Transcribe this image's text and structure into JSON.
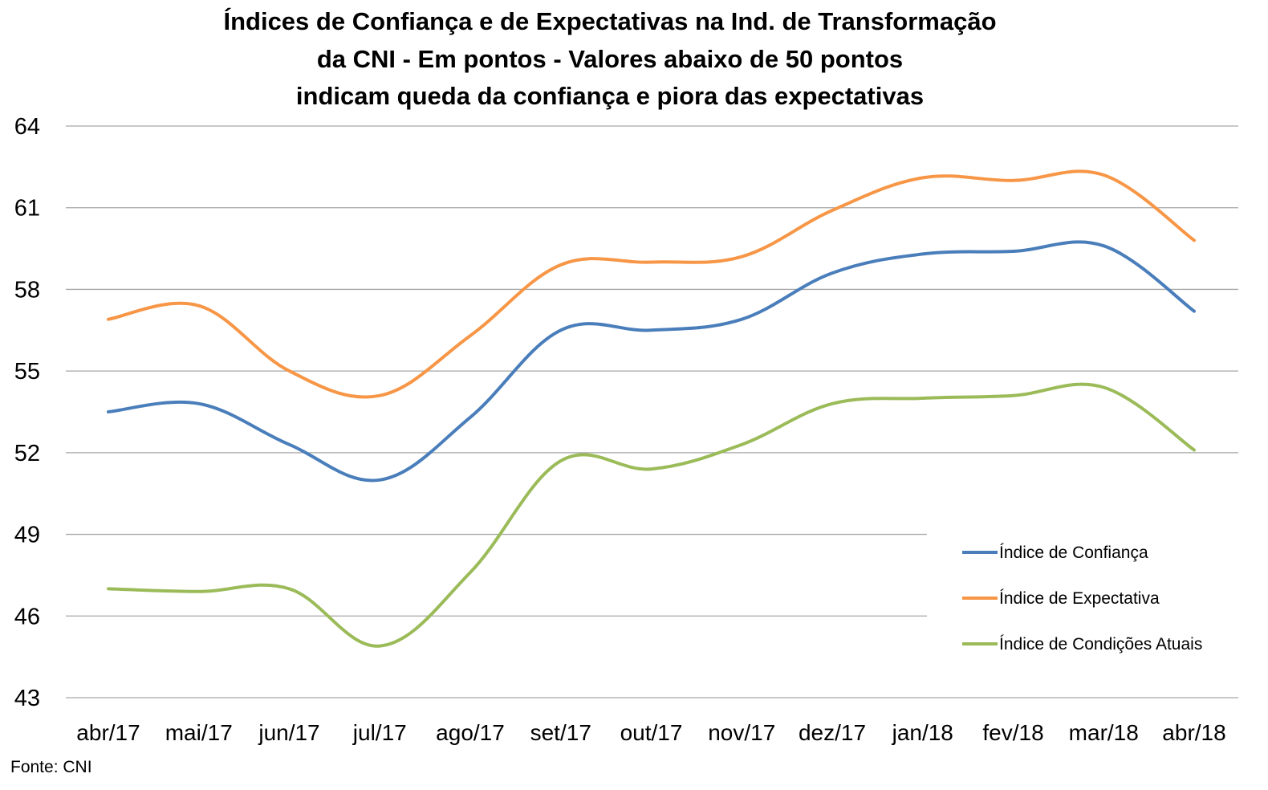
{
  "chart_data": {
    "type": "line",
    "title": [
      "Índices de Confiança e de Expectativas na Ind. de Transformação",
      "da CNI - Em pontos - Valores abaixo de 50 pontos",
      "indicam queda da confiança e piora das expectativas"
    ],
    "categories": [
      "abr/17",
      "mai/17",
      "jun/17",
      "jul/17",
      "ago/17",
      "set/17",
      "out/17",
      "nov/17",
      "dez/17",
      "jan/18",
      "fev/18",
      "mar/18",
      "abr/18"
    ],
    "yticks": [
      43,
      46,
      49,
      52,
      55,
      58,
      61,
      64
    ],
    "ylim": [
      43,
      64
    ],
    "grid": true,
    "legend_position": "right",
    "series": [
      {
        "name": "Índice de Confiança",
        "color": "#4a7ebb",
        "values": [
          53.5,
          53.8,
          52.3,
          51.0,
          53.3,
          56.5,
          56.5,
          56.9,
          58.6,
          59.3,
          59.4,
          59.6,
          57.2
        ]
      },
      {
        "name": "Índice de Expectativa",
        "color": "#f79646",
        "values": [
          56.9,
          57.4,
          55.0,
          54.1,
          56.3,
          58.9,
          59.0,
          59.2,
          60.9,
          62.1,
          62.0,
          62.2,
          59.8
        ]
      },
      {
        "name": "Índice de Condições Atuais",
        "color": "#9bbb59",
        "values": [
          47.0,
          46.9,
          47.0,
          44.9,
          47.6,
          51.7,
          51.4,
          52.3,
          53.8,
          54.0,
          54.1,
          54.4,
          52.1
        ]
      }
    ]
  },
  "source_note": "Fonte: CNI"
}
